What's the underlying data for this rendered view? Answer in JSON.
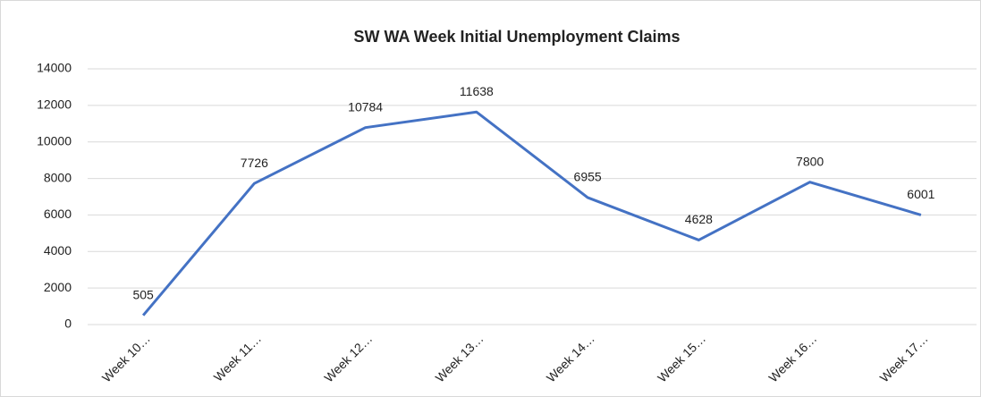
{
  "chart_data": {
    "type": "line",
    "title": "SW WA Week Initial Unemployment Claims",
    "categories": [
      "Week 10…",
      "Week 11…",
      "Week 12…",
      "Week 13…",
      "Week 14…",
      "Week 15…",
      "Week 16…",
      "Week 17…"
    ],
    "values": [
      505,
      7726,
      10784,
      11638,
      6955,
      4628,
      7800,
      6001
    ],
    "color": "#4472c4",
    "ylim": [
      0,
      14000
    ],
    "yticks": [
      0,
      2000,
      4000,
      6000,
      8000,
      10000,
      12000,
      14000
    ],
    "grid": true
  }
}
